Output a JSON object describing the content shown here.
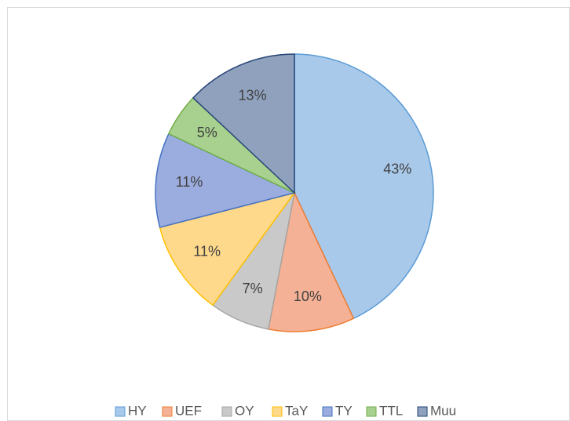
{
  "chart_data": {
    "type": "pie",
    "categories": [
      "HY",
      "UEF",
      "OY",
      "TaY",
      "TY",
      "TTL",
      "Muu"
    ],
    "values": [
      43,
      10,
      7,
      11,
      11,
      5,
      13
    ],
    "value_labels": [
      "43%",
      "10%",
      "7%",
      "11%",
      "11%",
      "5%",
      "13%"
    ],
    "colors": [
      "#a9c9ea",
      "#f5b195",
      "#c9c9c9",
      "#fed98c",
      "#9badde",
      "#a8d18f",
      "#8fa1bd"
    ],
    "edge_colors": [
      "#5b9bd5",
      "#ed7d31",
      "#a5a5a5",
      "#ffc000",
      "#4472c4",
      "#70ad47",
      "#264478"
    ],
    "legend": "bottom"
  }
}
